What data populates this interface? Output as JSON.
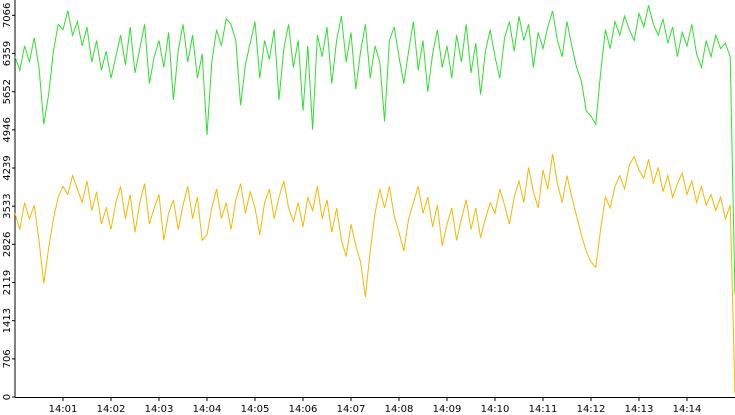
{
  "chart_data": {
    "type": "line",
    "xlim": [
      0,
      150
    ],
    "xticks": [
      {
        "value": 10,
        "label": "14:01"
      },
      {
        "value": 20,
        "label": "14:02"
      },
      {
        "value": 30,
        "label": "14:03"
      },
      {
        "value": 40,
        "label": "14:04"
      },
      {
        "value": 50,
        "label": "14:05"
      },
      {
        "value": 60,
        "label": "14:06"
      },
      {
        "value": 70,
        "label": "14:07"
      },
      {
        "value": 80,
        "label": "14:08"
      },
      {
        "value": 90,
        "label": "14:09"
      },
      {
        "value": 100,
        "label": "14:10"
      },
      {
        "value": 110,
        "label": "14:11"
      },
      {
        "value": 120,
        "label": "14:12"
      },
      {
        "value": 130,
        "label": "14:13"
      },
      {
        "value": 140,
        "label": "14:14"
      }
    ],
    "ylim": [
      0,
      7350
    ],
    "yticks": [
      0,
      706,
      1413,
      2119,
      2826,
      3533,
      4239,
      4946,
      5652,
      6359,
      7066
    ],
    "series": [
      {
        "color": "#2fe02f",
        "values": [
          6300,
          6050,
          6500,
          6200,
          6650,
          6100,
          5050,
          5600,
          6400,
          6900,
          6800,
          7150,
          6700,
          6950,
          6500,
          6850,
          6200,
          6600,
          6050,
          6400,
          5900,
          6300,
          6700,
          6150,
          6850,
          6000,
          6450,
          6900,
          5800,
          6300,
          6600,
          6100,
          6750,
          5500,
          6400,
          6900,
          6200,
          6700,
          5900,
          6350,
          4850,
          6200,
          6800,
          6500,
          7000,
          6900,
          6600,
          5400,
          6150,
          6550,
          6950,
          5900,
          6600,
          6250,
          6800,
          5500,
          6450,
          6900,
          6100,
          6600,
          5300,
          6500,
          4950,
          6700,
          6300,
          6850,
          5800,
          6600,
          7050,
          6200,
          6750,
          5700,
          6400,
          6900,
          5900,
          6500,
          6200,
          5100,
          6600,
          6850,
          6300,
          5800,
          6400,
          6950,
          6050,
          6600,
          5650,
          6350,
          6800,
          6100,
          6500,
          5900,
          6700,
          6200,
          6900,
          6000,
          6550,
          5600,
          6400,
          6800,
          6300,
          5900,
          6650,
          6950,
          6400,
          7050,
          6600,
          6900,
          6100,
          6750,
          6450,
          6850,
          7150,
          6600,
          6300,
          6950,
          6500,
          6100,
          5850,
          5300,
          5200,
          5050,
          6000,
          6800,
          6450,
          6950,
          6700,
          7050,
          6800,
          6600,
          7100,
          6850,
          7250,
          6900,
          6700,
          7000,
          6550,
          6850,
          6300,
          6750,
          6500,
          6900,
          6350,
          6100,
          6600,
          6300,
          6700,
          6450,
          6550,
          6300,
          1900
        ]
      },
      {
        "color": "#f4b800",
        "values": [
          3400,
          3100,
          3600,
          3300,
          3550,
          2900,
          2100,
          2750,
          3300,
          3700,
          3900,
          3750,
          4100,
          3850,
          3600,
          4000,
          3450,
          3800,
          3200,
          3500,
          3100,
          3600,
          3900,
          3300,
          3750,
          3050,
          3600,
          3950,
          3200,
          3500,
          3750,
          2900,
          3400,
          3650,
          3100,
          3550,
          3900,
          3300,
          3700,
          2900,
          3000,
          3500,
          3850,
          3300,
          3600,
          3100,
          3650,
          3950,
          3400,
          3800,
          3500,
          3000,
          3600,
          3850,
          3300,
          3700,
          4000,
          3500,
          3250,
          3600,
          3150,
          3700,
          3450,
          3900,
          3300,
          3650,
          3050,
          3500,
          2900,
          2600,
          3200,
          2800,
          2500,
          1850,
          2700,
          3400,
          3850,
          3500,
          3900,
          3350,
          3050,
          2700,
          3300,
          3600,
          3900,
          3400,
          3700,
          3150,
          3550,
          2800,
          3200,
          3500,
          2900,
          3300,
          3650,
          3100,
          3500,
          2950,
          3300,
          3600,
          3400,
          3850,
          3550,
          3200,
          3700,
          4000,
          3600,
          4250,
          3800,
          3500,
          4200,
          3850,
          4500,
          3950,
          3600,
          4100,
          3700,
          3350,
          3000,
          2700,
          2500,
          2400,
          3100,
          3700,
          3500,
          3900,
          4100,
          3850,
          4300,
          4450,
          4200,
          4050,
          4400,
          3950,
          4250,
          3800,
          4100,
          3700,
          3950,
          4150,
          3750,
          4000,
          3600,
          3900,
          3550,
          3750,
          3450,
          3700,
          3300,
          3550,
          50
        ]
      }
    ]
  }
}
